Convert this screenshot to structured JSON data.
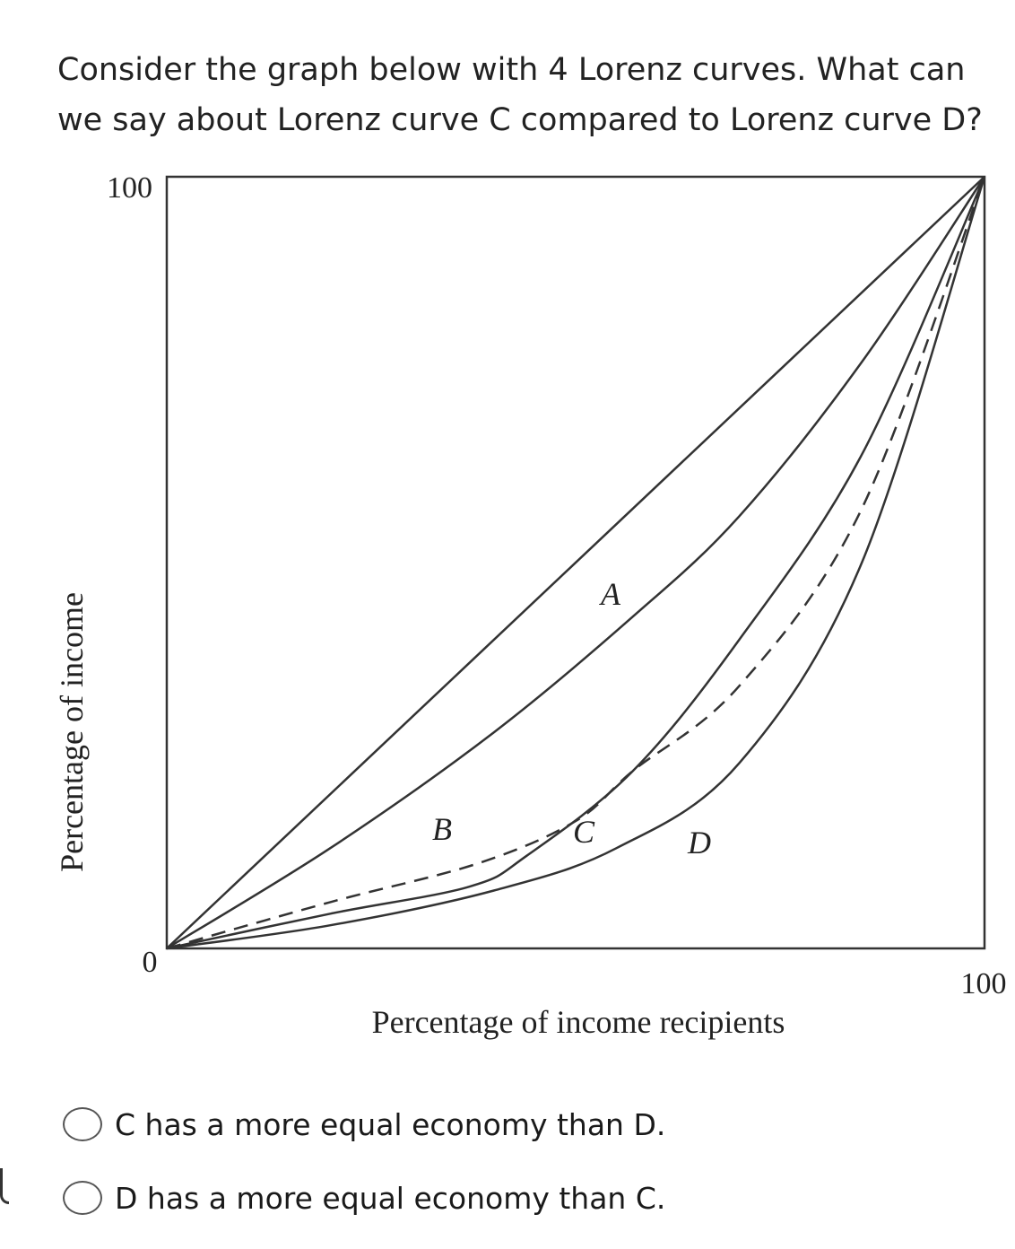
{
  "question": {
    "text": "Consider the graph below with 4 Lorenz curves. What can we say about Lorenz curve C compared to Lorenz curve D?"
  },
  "figure": {
    "y_axis_label": "Percentage of income",
    "x_axis_label": "Percentage of income recipients",
    "y_tick_top": "100",
    "y_tick_bottom": "0",
    "x_tick_right": "100",
    "curve_labels": [
      "A",
      "B",
      "C",
      "D"
    ]
  },
  "chart_data": {
    "type": "line",
    "xlabel": "Percentage of income recipients",
    "ylabel": "Percentage of income",
    "xlim": [
      0,
      100
    ],
    "ylim": [
      0,
      100
    ],
    "x_ticks": [
      "0",
      "100"
    ],
    "y_ticks": [
      "0",
      "100"
    ],
    "grid": false,
    "series": [
      {
        "name": "",
        "style": "solid",
        "points": [
          [
            0,
            0
          ],
          [
            100,
            100
          ]
        ]
      },
      {
        "name": "A",
        "style": "solid",
        "points": [
          [
            0,
            0
          ],
          [
            20,
            13
          ],
          [
            40,
            28
          ],
          [
            57,
            43
          ],
          [
            70,
            56
          ],
          [
            85,
            76
          ],
          [
            100,
            100
          ]
        ]
      },
      {
        "name": "B",
        "style": "dashed",
        "points": [
          [
            0,
            0
          ],
          [
            20,
            6
          ],
          [
            38,
            11
          ],
          [
            50,
            16.5
          ],
          [
            57,
            23
          ],
          [
            70,
            34
          ],
          [
            85,
            57
          ],
          [
            100,
            100
          ]
        ]
      },
      {
        "name": "C",
        "style": "solid",
        "points": [
          [
            0,
            0
          ],
          [
            20,
            4.5
          ],
          [
            37,
            8
          ],
          [
            44,
            12
          ],
          [
            57,
            23
          ],
          [
            70,
            40
          ],
          [
            85,
            64
          ],
          [
            100,
            100
          ]
        ]
      },
      {
        "name": "D",
        "style": "solid",
        "points": [
          [
            0,
            0
          ],
          [
            20,
            3
          ],
          [
            40,
            7.5
          ],
          [
            55,
            13
          ],
          [
            70,
            24
          ],
          [
            85,
            50
          ],
          [
            100,
            100
          ]
        ]
      }
    ]
  },
  "options": [
    {
      "label": "C has a more equal economy than D."
    },
    {
      "label": "D has a more equal economy than C."
    }
  ]
}
